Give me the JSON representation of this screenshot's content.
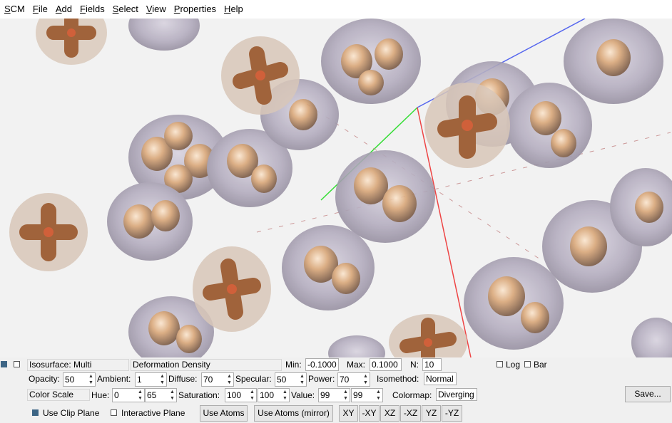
{
  "menu": [
    "SCM",
    "File",
    "Add",
    "Fields",
    "Select",
    "View",
    "Properties",
    "Help"
  ],
  "colors": {
    "atom_core": "#c38b5c",
    "density_shell": "#a9a3b5",
    "clip_blue": "#3d6585"
  },
  "row1": {
    "isosurface": "Isosurface: Multi",
    "field_name": "Deformation Density",
    "min_label": "Min:",
    "min_value": "-0.1000",
    "max_label": "Max:",
    "max_value": "0.1000",
    "n_label": "N:",
    "n_value": "10",
    "log_label": "Log",
    "bar_label": "Bar"
  },
  "row2": {
    "opacity_label": "Opacity:",
    "opacity": "50",
    "ambient_label": "Ambient:",
    "ambient": "1",
    "diffuse_label": "Diffuse:",
    "diffuse": "70",
    "specular_label": "Specular:",
    "specular": "50",
    "power_label": "Power:",
    "power": "70",
    "isomethod_label": "Isomethod:",
    "isomethod": "Normal"
  },
  "row3": {
    "color_scale": "Color Scale",
    "hue_label": "Hue:",
    "hue_min": "0",
    "hue_max": "65",
    "saturation_label": "Saturation:",
    "sat_min": "100",
    "sat_max": "100",
    "value_label": "Value:",
    "val_min": "99",
    "val_max": "99",
    "colormap_label": "Colormap:",
    "colormap": "Diverging",
    "save_label": "Save..."
  },
  "row4": {
    "use_clip_plane": "Use Clip Plane",
    "interactive_plane": "Interactive Plane",
    "use_atoms": "Use Atoms",
    "use_atoms_mirror": "Use Atoms (mirror)",
    "planes": [
      "XY",
      "-XY",
      "XZ",
      "-XZ",
      "YZ",
      "-YZ"
    ]
  }
}
